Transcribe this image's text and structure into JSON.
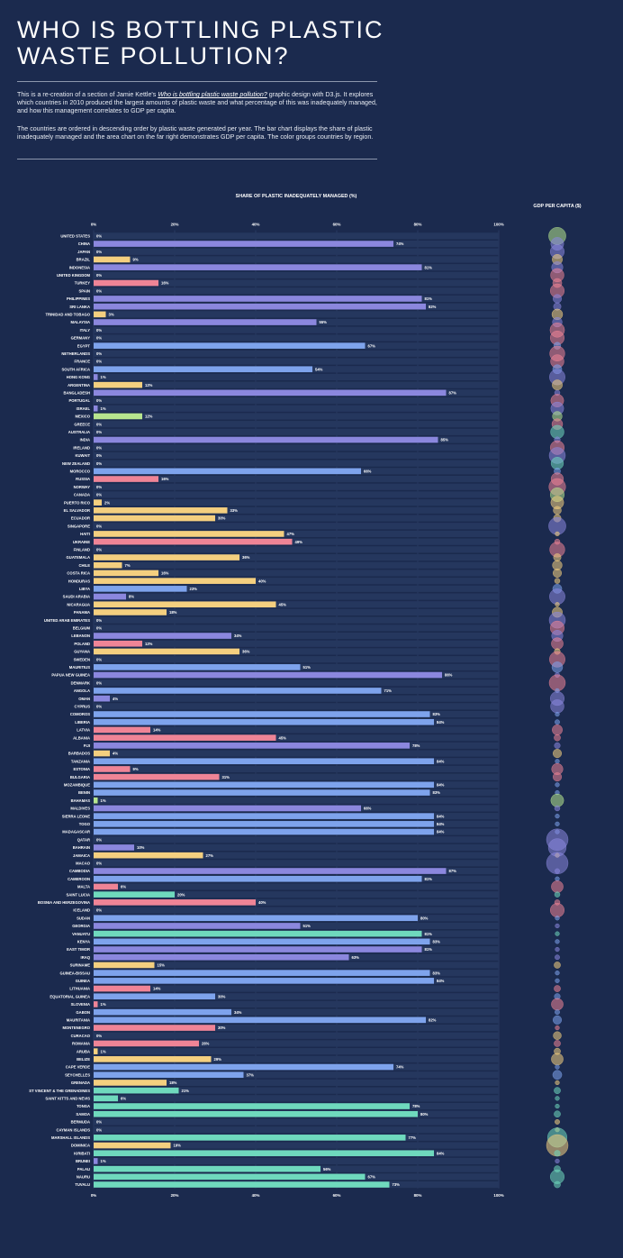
{
  "header": {
    "title": "WHO IS BOTTLING PLASTIC WASTE POLLUTION?",
    "intro_before": "This is a re-creation of a section of Jamie Kettle's ",
    "intro_link": "Who is bottling plastic waste pollution?",
    "intro_after": " graphic design with D3.js. It explores which countries in 2010 produced the largest amounts of plastic waste and what percentage of this was inadequately managed, and how this management correlates to GDP per capita.",
    "paragraph2": "The countries are ordered in descending order by plastic waste generated per year. The bar chart displays the share of plastic inadequately managed and the area chart on the far right demonstrates GDP per capita. The color groups countries by region."
  },
  "chart_data": {
    "type": "bar",
    "orientation": "horizontal",
    "title": "SHARE OF PLASTIC INADEQUATELY MANAGED (%)",
    "secondary_title": "GDP PER CAPITA ($)",
    "xlim": [
      0,
      100
    ],
    "x_ticks": [
      "0%",
      "20%",
      "40%",
      "60%",
      "80%",
      "100%"
    ],
    "legend": "none",
    "colors": {
      "background": "#1b2a4e",
      "row_band": "#25375e",
      "americas": "#f4cf7f",
      "asia": "#8b87de",
      "europe": "#ef8496",
      "africa": "#7ea3ec",
      "oceania": "#6fd9bd",
      "usa": "#b7e58e"
    },
    "rows": [
      {
        "country": "UNITED STATES",
        "value": 0,
        "label": "0%",
        "region": "usa"
      },
      {
        "country": "CHINA",
        "value": 74,
        "label": "74%",
        "region": "asia"
      },
      {
        "country": "JAPAN",
        "value": 0,
        "label": "0%",
        "region": "asia"
      },
      {
        "country": "BRAZIL",
        "value": 9,
        "label": "9%",
        "region": "americas"
      },
      {
        "country": "INDONESIA",
        "value": 81,
        "label": "81%",
        "region": "asia"
      },
      {
        "country": "UNITED KINGDOM",
        "value": 0,
        "label": "0%",
        "region": "europe"
      },
      {
        "country": "TURKEY",
        "value": 16,
        "label": "16%",
        "region": "europe"
      },
      {
        "country": "SPAIN",
        "value": 0,
        "label": "0%",
        "region": "europe"
      },
      {
        "country": "PHILIPPINES",
        "value": 81,
        "label": "81%",
        "region": "asia"
      },
      {
        "country": "SRI LANKA",
        "value": 82,
        "label": "82%",
        "region": "asia"
      },
      {
        "country": "TRINIDAD AND TOBAGO",
        "value": 3,
        "label": "3%",
        "region": "americas"
      },
      {
        "country": "MALAYSIA",
        "value": 55,
        "label": "55%",
        "region": "asia"
      },
      {
        "country": "ITALY",
        "value": 0,
        "label": "0%",
        "region": "europe"
      },
      {
        "country": "GERMANY",
        "value": 0,
        "label": "0%",
        "region": "europe"
      },
      {
        "country": "EGYPT",
        "value": 67,
        "label": "67%",
        "region": "africa"
      },
      {
        "country": "NETHERLANDS",
        "value": 0,
        "label": "0%",
        "region": "europe"
      },
      {
        "country": "FRANCE",
        "value": 0,
        "label": "0%",
        "region": "europe"
      },
      {
        "country": "SOUTH AFRICA",
        "value": 54,
        "label": "54%",
        "region": "africa"
      },
      {
        "country": "HONG KONG",
        "value": 1,
        "label": "1%",
        "region": "asia"
      },
      {
        "country": "ARGENTINA",
        "value": 12,
        "label": "12%",
        "region": "americas"
      },
      {
        "country": "BANGLADESH",
        "value": 87,
        "label": "87%",
        "region": "asia"
      },
      {
        "country": "PORTUGAL",
        "value": 0,
        "label": "0%",
        "region": "europe"
      },
      {
        "country": "ISRAEL",
        "value": 1,
        "label": "1%",
        "region": "asia"
      },
      {
        "country": "MEXICO",
        "value": 12,
        "label": "12%",
        "region": "usa"
      },
      {
        "country": "GREECE",
        "value": 0,
        "label": "0%",
        "region": "europe"
      },
      {
        "country": "AUSTRALIA",
        "value": 0,
        "label": "0%",
        "region": "oceania"
      },
      {
        "country": "INDIA",
        "value": 85,
        "label": "85%",
        "region": "asia"
      },
      {
        "country": "IRELAND",
        "value": 0,
        "label": "0%",
        "region": "europe"
      },
      {
        "country": "KUWAIT",
        "value": 0,
        "label": "0%",
        "region": "asia"
      },
      {
        "country": "NEW ZEALAND",
        "value": 0,
        "label": "0%",
        "region": "oceania"
      },
      {
        "country": "MOROCCO",
        "value": 66,
        "label": "66%",
        "region": "africa"
      },
      {
        "country": "RUSSIA",
        "value": 16,
        "label": "16%",
        "region": "europe"
      },
      {
        "country": "NORWAY",
        "value": 0,
        "label": "0%",
        "region": "europe"
      },
      {
        "country": "CANADA",
        "value": 0,
        "label": "0%",
        "region": "usa"
      },
      {
        "country": "PUERTO RICO",
        "value": 2,
        "label": "2%",
        "region": "americas"
      },
      {
        "country": "EL SALVADOR",
        "value": 33,
        "label": "33%",
        "region": "americas"
      },
      {
        "country": "ECUADOR",
        "value": 30,
        "label": "30%",
        "region": "americas"
      },
      {
        "country": "SINGAPORE",
        "value": 0,
        "label": "0%",
        "region": "asia"
      },
      {
        "country": "HAITI",
        "value": 47,
        "label": "47%",
        "region": "americas"
      },
      {
        "country": "UKRAINE",
        "value": 49,
        "label": "49%",
        "region": "europe"
      },
      {
        "country": "FINLAND",
        "value": 0,
        "label": "0%",
        "region": "europe"
      },
      {
        "country": "GUATEMALA",
        "value": 36,
        "label": "36%",
        "region": "americas"
      },
      {
        "country": "CHILE",
        "value": 7,
        "label": "7%",
        "region": "americas"
      },
      {
        "country": "COSTA RICA",
        "value": 16,
        "label": "16%",
        "region": "americas"
      },
      {
        "country": "HONDURAS",
        "value": 40,
        "label": "40%",
        "region": "americas"
      },
      {
        "country": "LIBYA",
        "value": 23,
        "label": "23%",
        "region": "africa"
      },
      {
        "country": "SAUDI ARABIA",
        "value": 8,
        "label": "8%",
        "region": "asia"
      },
      {
        "country": "NICARAGUA",
        "value": 45,
        "label": "45%",
        "region": "americas"
      },
      {
        "country": "PANAMA",
        "value": 18,
        "label": "18%",
        "region": "americas"
      },
      {
        "country": "UNITED ARAB EMIRATES",
        "value": 0,
        "label": "0%",
        "region": "asia"
      },
      {
        "country": "BELGIUM",
        "value": 0,
        "label": "0%",
        "region": "europe"
      },
      {
        "country": "LEBANON",
        "value": 34,
        "label": "34%",
        "region": "asia"
      },
      {
        "country": "POLAND",
        "value": 12,
        "label": "12%",
        "region": "europe"
      },
      {
        "country": "GUYANA",
        "value": 36,
        "label": "36%",
        "region": "americas"
      },
      {
        "country": "SWEDEN",
        "value": 0,
        "label": "0%",
        "region": "europe"
      },
      {
        "country": "MAURITIUS",
        "value": 51,
        "label": "51%",
        "region": "africa"
      },
      {
        "country": "PAPUA NEW GUINEA",
        "value": 86,
        "label": "86%",
        "region": "asia"
      },
      {
        "country": "DENMARK",
        "value": 0,
        "label": "0%",
        "region": "europe"
      },
      {
        "country": "ANGOLA",
        "value": 71,
        "label": "71%",
        "region": "africa"
      },
      {
        "country": "OMAN",
        "value": 4,
        "label": "4%",
        "region": "asia"
      },
      {
        "country": "CYPRUS",
        "value": 0,
        "label": "0%",
        "region": "asia"
      },
      {
        "country": "COMOROS",
        "value": 83,
        "label": "83%",
        "region": "africa"
      },
      {
        "country": "LIBERIA",
        "value": 84,
        "label": "84%",
        "region": "africa"
      },
      {
        "country": "LATVIA",
        "value": 14,
        "label": "14%",
        "region": "europe"
      },
      {
        "country": "ALBANIA",
        "value": 45,
        "label": "45%",
        "region": "europe"
      },
      {
        "country": "FIJI",
        "value": 78,
        "label": "78%",
        "region": "asia"
      },
      {
        "country": "BARBADOS",
        "value": 4,
        "label": "4%",
        "region": "americas"
      },
      {
        "country": "TANZANIA",
        "value": 84,
        "label": "84%",
        "region": "africa"
      },
      {
        "country": "ESTONIA",
        "value": 9,
        "label": "9%",
        "region": "europe"
      },
      {
        "country": "BULGARIA",
        "value": 31,
        "label": "31%",
        "region": "europe"
      },
      {
        "country": "MOZAMBIQUE",
        "value": 84,
        "label": "84%",
        "region": "africa"
      },
      {
        "country": "BENIN",
        "value": 83,
        "label": "83%",
        "region": "africa"
      },
      {
        "country": "BAHAMAS",
        "value": 1,
        "label": "1%",
        "region": "usa"
      },
      {
        "country": "MALDIVES",
        "value": 66,
        "label": "66%",
        "region": "asia"
      },
      {
        "country": "SIERRA LEONE",
        "value": 84,
        "label": "84%",
        "region": "africa"
      },
      {
        "country": "TOGO",
        "value": 84,
        "label": "84%",
        "region": "africa"
      },
      {
        "country": "MADAGASCAR",
        "value": 84,
        "label": "84%",
        "region": "africa"
      },
      {
        "country": "QATAR",
        "value": 0,
        "label": "0%",
        "region": "asia"
      },
      {
        "country": "BAHRAIN",
        "value": 10,
        "label": "10%",
        "region": "asia"
      },
      {
        "country": "JAMAICA",
        "value": 27,
        "label": "27%",
        "region": "americas"
      },
      {
        "country": "MACAO",
        "value": 0,
        "label": "0%",
        "region": "asia"
      },
      {
        "country": "CAMBODIA",
        "value": 87,
        "label": "87%",
        "region": "asia"
      },
      {
        "country": "CAMEROON",
        "value": 81,
        "label": "81%",
        "region": "africa"
      },
      {
        "country": "MALTA",
        "value": 6,
        "label": "6%",
        "region": "europe"
      },
      {
        "country": "SAINT LUCIA",
        "value": 20,
        "label": "20%",
        "region": "oceania"
      },
      {
        "country": "BOSNIA AND HERZEGOVINA",
        "value": 40,
        "label": "40%",
        "region": "europe"
      },
      {
        "country": "ICELAND",
        "value": 0,
        "label": "0%",
        "region": "europe"
      },
      {
        "country": "SUDAN",
        "value": 80,
        "label": "80%",
        "region": "africa"
      },
      {
        "country": "GEORGIA",
        "value": 51,
        "label": "51%",
        "region": "asia"
      },
      {
        "country": "VANUATU",
        "value": 81,
        "label": "81%",
        "region": "oceania"
      },
      {
        "country": "KENYA",
        "value": 83,
        "label": "83%",
        "region": "africa"
      },
      {
        "country": "EAST TIMOR",
        "value": 81,
        "label": "81%",
        "region": "asia"
      },
      {
        "country": "IRAQ",
        "value": 63,
        "label": "63%",
        "region": "asia"
      },
      {
        "country": "SURINAME",
        "value": 15,
        "label": "15%",
        "region": "americas"
      },
      {
        "country": "GUINEA-BISSAU",
        "value": 83,
        "label": "83%",
        "region": "africa"
      },
      {
        "country": "GUINEA",
        "value": 84,
        "label": "84%",
        "region": "africa"
      },
      {
        "country": "LITHUANIA",
        "value": 14,
        "label": "14%",
        "region": "europe"
      },
      {
        "country": "EQUATORIAL GUINEA",
        "value": 30,
        "label": "30%",
        "region": "africa"
      },
      {
        "country": "SLOVENIA",
        "value": 1,
        "label": "1%",
        "region": "europe"
      },
      {
        "country": "GABON",
        "value": 34,
        "label": "34%",
        "region": "africa"
      },
      {
        "country": "MAURITANIA",
        "value": 82,
        "label": "82%",
        "region": "africa"
      },
      {
        "country": "MONTENEGRO",
        "value": 30,
        "label": "30%",
        "region": "europe"
      },
      {
        "country": "CURACAO",
        "value": 0,
        "label": "0%",
        "region": "americas"
      },
      {
        "country": "ROMANIA",
        "value": 26,
        "label": "26%",
        "region": "europe"
      },
      {
        "country": "ARUBA",
        "value": 1,
        "label": "1%",
        "region": "americas"
      },
      {
        "country": "BELIZE",
        "value": 29,
        "label": "29%",
        "region": "americas"
      },
      {
        "country": "CAPE VERDE",
        "value": 74,
        "label": "74%",
        "region": "africa"
      },
      {
        "country": "SEYCHELLES",
        "value": 37,
        "label": "37%",
        "region": "africa"
      },
      {
        "country": "GRENADA",
        "value": 18,
        "label": "18%",
        "region": "americas"
      },
      {
        "country": "ST VINCENT & THE GRENADINES",
        "value": 21,
        "label": "21%",
        "region": "oceania"
      },
      {
        "country": "SAINT KITTS AND NEVIS",
        "value": 6,
        "label": "6%",
        "region": "oceania"
      },
      {
        "country": "TONGA",
        "value": 78,
        "label": "78%",
        "region": "oceania"
      },
      {
        "country": "SAMOA",
        "value": 80,
        "label": "80%",
        "region": "oceania"
      },
      {
        "country": "BERMUDA",
        "value": 0,
        "label": "0%",
        "region": "americas"
      },
      {
        "country": "CAYMAN ISLANDS",
        "value": 0,
        "label": "0%",
        "region": "americas"
      },
      {
        "country": "MARSHALL ISLANDS",
        "value": 77,
        "label": "77%",
        "region": "oceania"
      },
      {
        "country": "DOMINICA",
        "value": 19,
        "label": "19%",
        "region": "americas"
      },
      {
        "country": "KIRIBATI",
        "value": 84,
        "label": "84%",
        "region": "oceania"
      },
      {
        "country": "BRUNEI",
        "value": 1,
        "label": "1%",
        "region": "asia"
      },
      {
        "country": "PALAU",
        "value": 56,
        "label": "56%",
        "region": "oceania"
      },
      {
        "country": "NAURU",
        "value": 67,
        "label": "67%",
        "region": "oceania"
      },
      {
        "country": "TUVALU",
        "value": 73,
        "label": "73%",
        "region": "oceania"
      }
    ],
    "gdp_bubbles_relative": [
      3.2,
      2.4,
      2.6,
      1.9,
      2.1,
      2.5,
      1.7,
      2.6,
      1.6,
      1.4,
      2.0,
      1.8,
      2.7,
      2.6,
      1.3,
      2.8,
      2.5,
      1.7,
      2.9,
      1.9,
      1.0,
      2.4,
      2.4,
      1.8,
      2.0,
      2.5,
      1.1,
      2.6,
      3.0,
      2.3,
      1.2,
      2.3,
      3.1,
      2.6,
      2.4,
      1.5,
      1.4,
      3.2,
      0.6,
      1.0,
      2.8,
      1.4,
      1.8,
      1.6,
      1.0,
      1.7,
      2.9,
      0.8,
      1.9,
      3.0,
      2.6,
      2.1,
      2.2,
      1.1,
      2.9,
      2.0,
      0.9,
      3.0,
      0.8,
      2.6,
      2.5,
      0.4,
      0.9,
      1.9,
      1.2,
      1.1,
      1.6,
      0.4,
      2.1,
      1.6,
      0.4,
      0.6,
      2.4,
      1.0,
      0.5,
      0.5,
      0.6,
      4.0,
      3.3,
      0.7,
      4.0,
      0.9,
      0.6,
      2.2,
      1.0,
      1.0,
      2.6,
      0.6,
      0.8,
      0.6,
      0.4,
      0.6,
      0.9,
      1.2,
      0.6,
      0.3,
      1.2,
      1.1,
      2.2,
      0.9,
      1.6,
      0.5,
      1.5,
      1.2,
      1.2,
      2.2,
      0.7,
      1.7,
      0.6,
      1.2,
      0.6,
      0.7,
      1.2,
      0.9,
      0.6,
      3.6,
      4.0,
      1.1,
      0.7,
      1.2,
      2.6,
      1.2,
      0.9,
      0.4
    ]
  }
}
